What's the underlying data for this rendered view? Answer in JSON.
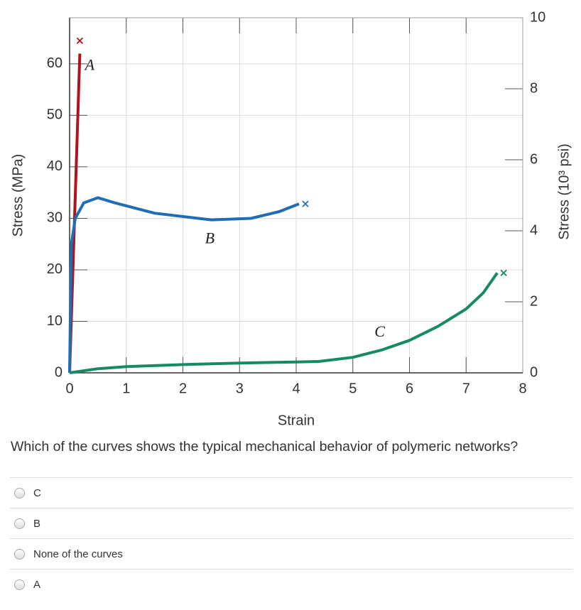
{
  "chart_data": {
    "type": "line",
    "xlabel": "Strain",
    "ylabel": "Stress (MPa)",
    "y2label": "Stress (10³ psi)",
    "xlim": [
      0,
      8
    ],
    "xticks": [
      0,
      1,
      2,
      3,
      4,
      5,
      6,
      7,
      8
    ],
    "ylim": [
      0,
      68.95
    ],
    "yticks": [
      0,
      10,
      20,
      30,
      40,
      50,
      60
    ],
    "y2lim": [
      0,
      10
    ],
    "y2ticks": [
      0,
      2,
      4,
      6,
      8,
      10
    ],
    "grid": true,
    "series": [
      {
        "name": "A",
        "color": "#b0131e",
        "x": [
          0,
          0.18
        ],
        "values": [
          0,
          62
        ]
      },
      {
        "name": "B",
        "color": "#1f6db4",
        "x": [
          0,
          0.03,
          0.1,
          0.25,
          0.5,
          0.8,
          1.5,
          2.5,
          3.2,
          3.7,
          4.05
        ],
        "values": [
          0,
          25,
          30,
          33,
          34,
          33,
          31,
          29.7,
          30,
          31.3,
          32.8
        ]
      },
      {
        "name": "C",
        "color": "#168a66",
        "x": [
          0,
          0.5,
          1,
          2,
          3,
          4,
          4.4,
          5,
          5.5,
          6,
          6.5,
          7,
          7.3,
          7.55
        ],
        "values": [
          0,
          0.8,
          1.2,
          1.6,
          1.9,
          2.1,
          2.2,
          3,
          4.4,
          6.3,
          9,
          12.4,
          15.5,
          19.4
        ]
      }
    ]
  },
  "question": "Which of the curves shows the typical mechanical behavior of polymeric networks?",
  "options": [
    "C",
    "B",
    "None of the curves",
    "A"
  ]
}
